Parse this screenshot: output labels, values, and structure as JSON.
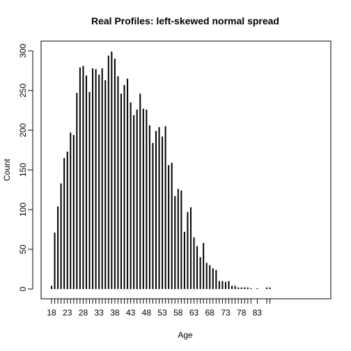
{
  "chart_data": {
    "type": "bar",
    "title": "Real Profiles: left-skewed normal spread",
    "xlabel": "Age",
    "ylabel": "Count",
    "x": [
      18,
      19,
      20,
      21,
      22,
      23,
      24,
      25,
      26,
      27,
      28,
      29,
      30,
      31,
      32,
      33,
      34,
      35,
      36,
      37,
      38,
      39,
      40,
      41,
      42,
      43,
      44,
      45,
      46,
      47,
      48,
      49,
      50,
      51,
      52,
      53,
      54,
      55,
      56,
      57,
      58,
      59,
      60,
      61,
      62,
      63,
      64,
      65,
      66,
      67,
      68,
      69,
      70,
      71,
      72,
      73,
      74,
      75,
      76,
      77,
      78,
      79,
      80,
      81,
      83,
      86,
      87
    ],
    "values": [
      4,
      71,
      104,
      133,
      165,
      173,
      197,
      194,
      247,
      279,
      281,
      269,
      248,
      278,
      277,
      270,
      278,
      263,
      294,
      299,
      290,
      268,
      246,
      257,
      265,
      235,
      219,
      226,
      246,
      227,
      226,
      206,
      184,
      199,
      204,
      192,
      205,
      156,
      159,
      117,
      126,
      124,
      72,
      97,
      103,
      65,
      54,
      40,
      58,
      33,
      30,
      26,
      24,
      10,
      10,
      9,
      10,
      4,
      4,
      2,
      2,
      2,
      2,
      1,
      1,
      2,
      2
    ],
    "ylim": [
      0,
      300
    ],
    "yticks": [
      0,
      50,
      100,
      150,
      200,
      250,
      300
    ],
    "xtick_labels": [
      "18",
      "23",
      "28",
      "33",
      "38",
      "43",
      "48",
      "53",
      "58",
      "63",
      "68",
      "73",
      "78",
      "83"
    ],
    "xtick_values": [
      18,
      23,
      28,
      33,
      38,
      43,
      48,
      53,
      58,
      63,
      68,
      73,
      78,
      83
    ],
    "xtick_marks": [
      18,
      19,
      20,
      21,
      22,
      23,
      24,
      25,
      26,
      27,
      28,
      29,
      30,
      31,
      32,
      33,
      34,
      35,
      36,
      37,
      38,
      39,
      40,
      41,
      42,
      43,
      44,
      45,
      46,
      47,
      48,
      49,
      50,
      51,
      52,
      53,
      54,
      55,
      56,
      57,
      58,
      59,
      60,
      61,
      62,
      63,
      64,
      65,
      66,
      67,
      68,
      69,
      70,
      71,
      72,
      73,
      74,
      75,
      76,
      77,
      78,
      79,
      80,
      81,
      83,
      86,
      87
    ],
    "bar_color": "#000000"
  }
}
